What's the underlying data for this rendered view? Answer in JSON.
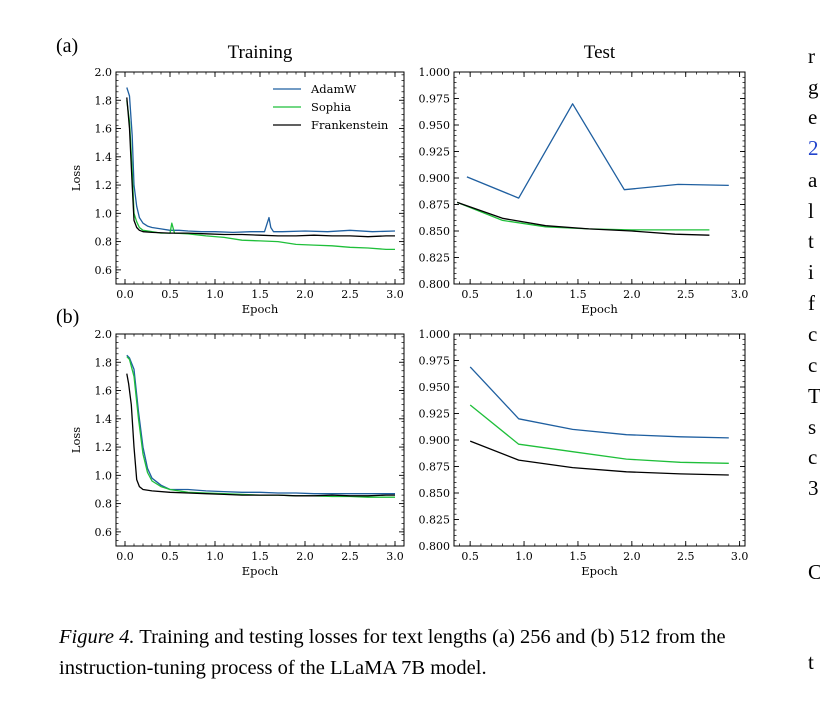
{
  "colors": {
    "adamw": "#1f5fa0",
    "sophia": "#1fbf3a",
    "frankenstein": "#000000"
  },
  "column_titles": [
    "Training",
    "Test"
  ],
  "legend": [
    "AdamW",
    "Sophia",
    "Frankenstein"
  ],
  "caption": {
    "label": "Figure 4.",
    "text": " Training and testing losses for text lengths (a) 256 and (b) 512 from the instruction-tuning process of the LLaMA 7B model."
  },
  "sidebar_fragments": [
    {
      "text": "r"
    },
    {
      "text": "g"
    },
    {
      "text": "e"
    },
    {
      "text": "2",
      "link": true
    },
    {
      "text": "a"
    },
    {
      "text": "l"
    },
    {
      "text": "t"
    },
    {
      "text": "i"
    },
    {
      "text": "f"
    },
    {
      "text": "c"
    },
    {
      "text": "c"
    },
    {
      "text": "T"
    },
    {
      "text": "s"
    },
    {
      "text": "c"
    },
    {
      "text": "3"
    },
    {
      "text": "C"
    },
    {
      "text": "t"
    }
  ],
  "chart_data": [
    {
      "panel": "(a)",
      "title": "Training",
      "type": "line",
      "xlabel": "Epoch",
      "ylabel": "Loss",
      "xlim": [
        -0.1,
        3.1
      ],
      "ylim": [
        0.5,
        2.0
      ],
      "xticks": [
        0.0,
        0.5,
        1.0,
        1.5,
        2.0,
        2.5,
        3.0
      ],
      "yticks": [
        0.6,
        0.8,
        1.0,
        1.2,
        1.4,
        1.6,
        1.8,
        2.0
      ],
      "xtick_labels": [
        "0.0",
        "0.5",
        "1.0",
        "1.5",
        "2.0",
        "2.5",
        "3.0"
      ],
      "ytick_labels": [
        "0.6",
        "0.8",
        "1.0",
        "1.2",
        "1.4",
        "1.6",
        "1.8",
        "2.0"
      ],
      "legend_position": "top-right",
      "series": [
        {
          "name": "AdamW",
          "color": "adamw",
          "x": [
            0.02,
            0.05,
            0.08,
            0.1,
            0.13,
            0.16,
            0.2,
            0.25,
            0.3,
            0.4,
            0.5,
            0.6,
            0.7,
            0.85,
            1.0,
            1.2,
            1.4,
            1.55,
            1.6,
            1.62,
            1.65,
            1.75,
            2.0,
            2.25,
            2.5,
            2.75,
            3.0
          ],
          "y": [
            1.89,
            1.83,
            1.55,
            1.2,
            1.05,
            0.97,
            0.93,
            0.91,
            0.9,
            0.89,
            0.88,
            0.88,
            0.875,
            0.87,
            0.87,
            0.865,
            0.87,
            0.87,
            0.97,
            0.9,
            0.87,
            0.87,
            0.875,
            0.87,
            0.88,
            0.87,
            0.875
          ]
        },
        {
          "name": "Sophia",
          "color": "sophia",
          "x": [
            0.02,
            0.05,
            0.08,
            0.1,
            0.13,
            0.16,
            0.2,
            0.3,
            0.4,
            0.5,
            0.52,
            0.55,
            0.7,
            0.9,
            1.1,
            1.3,
            1.5,
            1.7,
            1.9,
            2.1,
            2.3,
            2.5,
            2.7,
            2.9,
            3.0
          ],
          "y": [
            1.8,
            1.65,
            1.3,
            1.0,
            0.94,
            0.9,
            0.88,
            0.87,
            0.86,
            0.86,
            0.93,
            0.86,
            0.855,
            0.84,
            0.83,
            0.81,
            0.805,
            0.8,
            0.78,
            0.775,
            0.77,
            0.76,
            0.755,
            0.745,
            0.745
          ]
        },
        {
          "name": "Frankenstein",
          "color": "frankenstein",
          "x": [
            0.02,
            0.05,
            0.08,
            0.1,
            0.13,
            0.16,
            0.2,
            0.3,
            0.5,
            0.7,
            0.9,
            1.1,
            1.3,
            1.5,
            1.7,
            1.9,
            2.1,
            2.3,
            2.5,
            2.7,
            2.9,
            3.0
          ],
          "y": [
            1.82,
            1.6,
            1.2,
            0.95,
            0.9,
            0.88,
            0.87,
            0.865,
            0.86,
            0.86,
            0.855,
            0.85,
            0.85,
            0.845,
            0.84,
            0.84,
            0.845,
            0.84,
            0.84,
            0.835,
            0.84,
            0.84
          ]
        }
      ]
    },
    {
      "panel": "(a)",
      "title": "Test",
      "type": "line",
      "xlabel": "Epoch",
      "ylabel": "",
      "xlim": [
        0.35,
        3.05
      ],
      "ylim": [
        0.8,
        1.0
      ],
      "xticks": [
        0.5,
        1.0,
        1.5,
        2.0,
        2.5,
        3.0
      ],
      "yticks": [
        0.8,
        0.825,
        0.85,
        0.875,
        0.9,
        0.925,
        0.95,
        0.975,
        1.0
      ],
      "xtick_labels": [
        "0.5",
        "1.0",
        "1.5",
        "2.0",
        "2.5",
        "3.0"
      ],
      "ytick_labels": [
        "0.800",
        "0.825",
        "0.850",
        "0.875",
        "0.900",
        "0.925",
        "0.950",
        "0.975",
        "1.000"
      ],
      "series": [
        {
          "name": "AdamW",
          "color": "adamw",
          "x": [
            0.47,
            0.95,
            1.45,
            1.93,
            2.43,
            2.9
          ],
          "y": [
            0.901,
            0.881,
            0.97,
            0.889,
            0.894,
            0.893
          ]
        },
        {
          "name": "Sophia",
          "color": "sophia",
          "x": [
            0.38,
            0.8,
            1.2,
            1.6,
            2.0,
            2.4,
            2.72
          ],
          "y": [
            0.877,
            0.86,
            0.854,
            0.852,
            0.851,
            0.851,
            0.851
          ]
        },
        {
          "name": "Frankenstein",
          "color": "frankenstein",
          "x": [
            0.38,
            0.8,
            1.2,
            1.6,
            2.0,
            2.4,
            2.72
          ],
          "y": [
            0.877,
            0.862,
            0.855,
            0.852,
            0.85,
            0.847,
            0.846
          ]
        }
      ]
    },
    {
      "panel": "(b)",
      "title": "",
      "type": "line",
      "xlabel": "Epoch",
      "ylabel": "Loss",
      "xlim": [
        -0.1,
        3.1
      ],
      "ylim": [
        0.5,
        2.0
      ],
      "xticks": [
        0.0,
        0.5,
        1.0,
        1.5,
        2.0,
        2.5,
        3.0
      ],
      "yticks": [
        0.6,
        0.8,
        1.0,
        1.2,
        1.4,
        1.6,
        1.8,
        2.0
      ],
      "xtick_labels": [
        "0.0",
        "0.5",
        "1.0",
        "1.5",
        "2.0",
        "2.5",
        "3.0"
      ],
      "ytick_labels": [
        "0.6",
        "0.8",
        "1.0",
        "1.2",
        "1.4",
        "1.6",
        "1.8",
        "2.0"
      ],
      "series": [
        {
          "name": "AdamW",
          "color": "adamw",
          "x": [
            0.02,
            0.05,
            0.1,
            0.15,
            0.2,
            0.25,
            0.3,
            0.4,
            0.5,
            0.7,
            0.9,
            1.1,
            1.3,
            1.5,
            1.7,
            1.9,
            2.1,
            2.3,
            2.5,
            2.7,
            2.9,
            3.0
          ],
          "y": [
            1.85,
            1.83,
            1.75,
            1.45,
            1.2,
            1.05,
            0.98,
            0.93,
            0.9,
            0.9,
            0.89,
            0.885,
            0.88,
            0.88,
            0.875,
            0.875,
            0.87,
            0.87,
            0.87,
            0.87,
            0.87,
            0.87
          ]
        },
        {
          "name": "Sophia",
          "color": "sophia",
          "x": [
            0.02,
            0.05,
            0.1,
            0.15,
            0.2,
            0.25,
            0.3,
            0.4,
            0.5,
            0.7,
            0.9,
            1.1,
            1.3,
            1.5,
            1.7,
            1.9,
            2.1,
            2.3,
            2.5,
            2.7,
            2.9,
            3.0
          ],
          "y": [
            1.84,
            1.82,
            1.7,
            1.4,
            1.15,
            1.02,
            0.96,
            0.92,
            0.9,
            0.88,
            0.875,
            0.87,
            0.865,
            0.86,
            0.86,
            0.855,
            0.855,
            0.85,
            0.85,
            0.845,
            0.845,
            0.845
          ]
        },
        {
          "name": "Frankenstein",
          "color": "frankenstein",
          "x": [
            0.02,
            0.04,
            0.07,
            0.1,
            0.13,
            0.16,
            0.2,
            0.3,
            0.5,
            0.7,
            0.9,
            1.1,
            1.3,
            1.5,
            1.7,
            1.9,
            2.1,
            2.3,
            2.5,
            2.7,
            2.9,
            3.0
          ],
          "y": [
            1.72,
            1.65,
            1.5,
            1.2,
            0.97,
            0.92,
            0.9,
            0.89,
            0.88,
            0.875,
            0.87,
            0.865,
            0.86,
            0.86,
            0.86,
            0.855,
            0.855,
            0.86,
            0.855,
            0.855,
            0.86,
            0.86
          ]
        }
      ]
    },
    {
      "panel": "(b)",
      "title": "",
      "type": "line",
      "xlabel": "Epoch",
      "ylabel": "",
      "xlim": [
        0.35,
        3.05
      ],
      "ylim": [
        0.8,
        1.0
      ],
      "xticks": [
        0.5,
        1.0,
        1.5,
        2.0,
        2.5,
        3.0
      ],
      "yticks": [
        0.8,
        0.825,
        0.85,
        0.875,
        0.9,
        0.925,
        0.95,
        0.975,
        1.0
      ],
      "xtick_labels": [
        "0.5",
        "1.0",
        "1.5",
        "2.0",
        "2.5",
        "3.0"
      ],
      "ytick_labels": [
        "0.800",
        "0.825",
        "0.850",
        "0.875",
        "0.900",
        "0.925",
        "0.950",
        "0.975",
        "1.000"
      ],
      "series": [
        {
          "name": "AdamW",
          "color": "adamw",
          "x": [
            0.5,
            0.95,
            1.45,
            1.95,
            2.45,
            2.9
          ],
          "y": [
            0.969,
            0.92,
            0.91,
            0.905,
            0.903,
            0.902
          ]
        },
        {
          "name": "Sophia",
          "color": "sophia",
          "x": [
            0.5,
            0.95,
            1.45,
            1.95,
            2.45,
            2.9
          ],
          "y": [
            0.933,
            0.896,
            0.889,
            0.882,
            0.879,
            0.878
          ]
        },
        {
          "name": "Frankenstein",
          "color": "frankenstein",
          "x": [
            0.5,
            0.95,
            1.45,
            1.95,
            2.45,
            2.9
          ],
          "y": [
            0.899,
            0.881,
            0.874,
            0.87,
            0.868,
            0.867
          ]
        }
      ]
    }
  ]
}
